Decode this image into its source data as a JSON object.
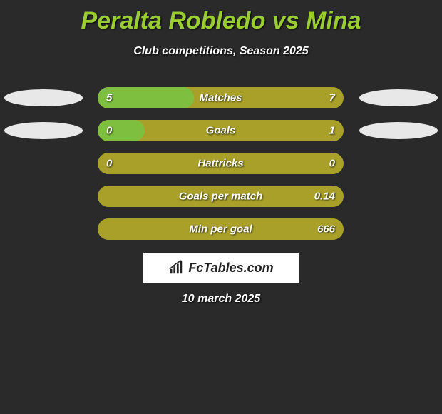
{
  "title": "Peralta Robledo vs Mina",
  "subtitle": "Club competitions, Season 2025",
  "date": "10 march 2025",
  "brand": "FcTables.com",
  "bar_background_color": "#a8a029",
  "left_fill_color": "#7fbf3f",
  "right_fill_color": "#7fbf3f",
  "ellipse_color": "#e8e8e8",
  "rows": [
    {
      "label": "Matches",
      "left_value": "5",
      "right_value": "7",
      "left_fill_pct": 39,
      "right_fill_pct": 0,
      "show_left_ellipse": true,
      "show_right_ellipse": true
    },
    {
      "label": "Goals",
      "left_value": "0",
      "right_value": "1",
      "left_fill_pct": 19,
      "right_fill_pct": 0,
      "show_left_ellipse": true,
      "show_right_ellipse": true
    },
    {
      "label": "Hattricks",
      "left_value": "0",
      "right_value": "0",
      "left_fill_pct": 0,
      "right_fill_pct": 0,
      "show_left_ellipse": false,
      "show_right_ellipse": false
    },
    {
      "label": "Goals per match",
      "left_value": "",
      "right_value": "0.14",
      "left_fill_pct": 0,
      "right_fill_pct": 0,
      "show_left_ellipse": false,
      "show_right_ellipse": false
    },
    {
      "label": "Min per goal",
      "left_value": "",
      "right_value": "666",
      "left_fill_pct": 0,
      "right_fill_pct": 0,
      "show_left_ellipse": false,
      "show_right_ellipse": false
    }
  ]
}
